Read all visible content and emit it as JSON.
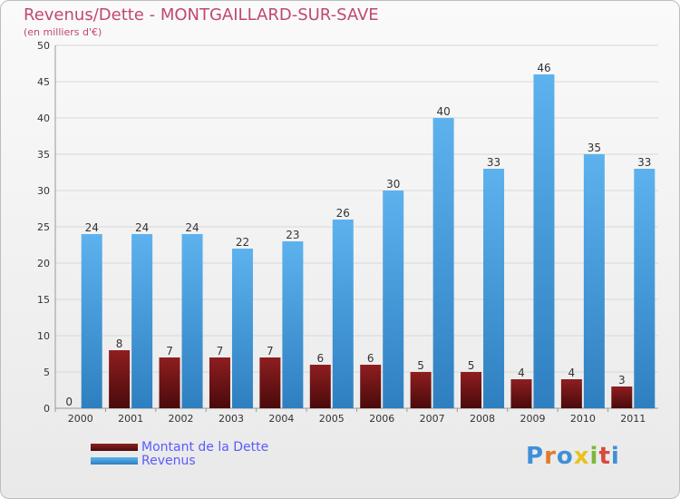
{
  "title": "Revenus/Dette - MONTGAILLARD-SUR-SAVE",
  "subtitle": "(en milliers d'€)",
  "colors": {
    "debt": "#7b1416",
    "revenue": "#4aa3e6",
    "title": "#c0486e",
    "legend_text": "#5a5aff"
  },
  "chart_data": {
    "type": "bar",
    "categories": [
      "2000",
      "2001",
      "2002",
      "2003",
      "2004",
      "2005",
      "2006",
      "2007",
      "2008",
      "2009",
      "2010",
      "2011"
    ],
    "series": [
      {
        "name": "Montant de la Dette",
        "values": [
          0,
          8,
          7,
          7,
          7,
          6,
          6,
          5,
          5,
          4,
          4,
          3
        ]
      },
      {
        "name": "Revenus",
        "values": [
          24,
          24,
          24,
          22,
          23,
          26,
          30,
          40,
          33,
          46,
          35,
          33
        ]
      }
    ],
    "yticks": [
      0,
      5,
      10,
      15,
      20,
      25,
      30,
      35,
      40,
      45,
      50
    ],
    "ylim": [
      0,
      50
    ],
    "grid": true
  },
  "legend": [
    {
      "label": "Montant de la Dette"
    },
    {
      "label": "Revenus"
    }
  ],
  "logo": {
    "text": "Proxiti"
  }
}
